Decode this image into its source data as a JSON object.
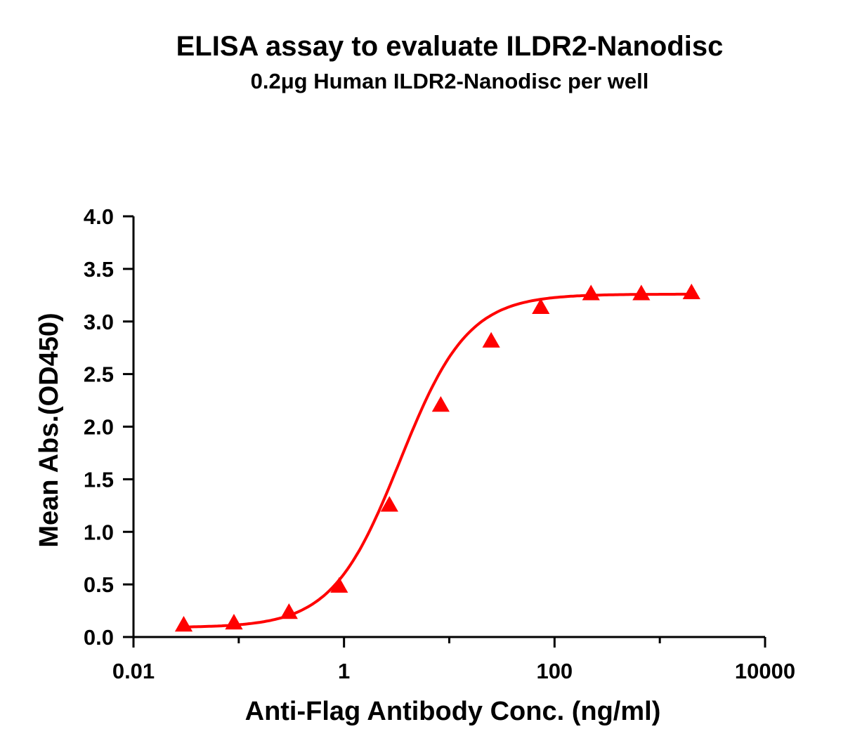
{
  "chart_data": {
    "type": "scatter",
    "title": "ELISA assay to evaluate ILDR2-Nanodisc",
    "subtitle": "0.2μg Human ILDR2-Nanodisc per well",
    "xlabel": "Anti-Flag Antibody Conc. (ng/ml)",
    "ylabel": "Mean Abs.(OD450)",
    "x_scale": "log",
    "xlim": [
      0.01,
      10000
    ],
    "ylim": [
      0,
      4.0
    ],
    "x_ticks": [
      0.01,
      1,
      100,
      10000
    ],
    "x_tick_labels": [
      "0.01",
      "1",
      "100",
      "10000"
    ],
    "y_ticks": [
      0,
      0.5,
      1.0,
      1.5,
      2.0,
      2.5,
      3.0,
      3.5,
      4.0
    ],
    "y_tick_labels": [
      "0.0",
      "0.5",
      "1.0",
      "1.5",
      "2.0",
      "2.5",
      "3.0",
      "3.5",
      "4.0"
    ],
    "grid": false,
    "legend": "none",
    "color": "#ff0000",
    "marker": "triangle",
    "series": [
      {
        "x": [
          0.03,
          0.09,
          0.3,
          0.9,
          2.7,
          8.3,
          25,
          74,
          222,
          667,
          2000
        ],
        "y": [
          0.1,
          0.12,
          0.22,
          0.47,
          1.24,
          2.19,
          2.8,
          3.12,
          3.25,
          3.25,
          3.26
        ],
        "fit": "4PL sigmoid"
      }
    ]
  }
}
